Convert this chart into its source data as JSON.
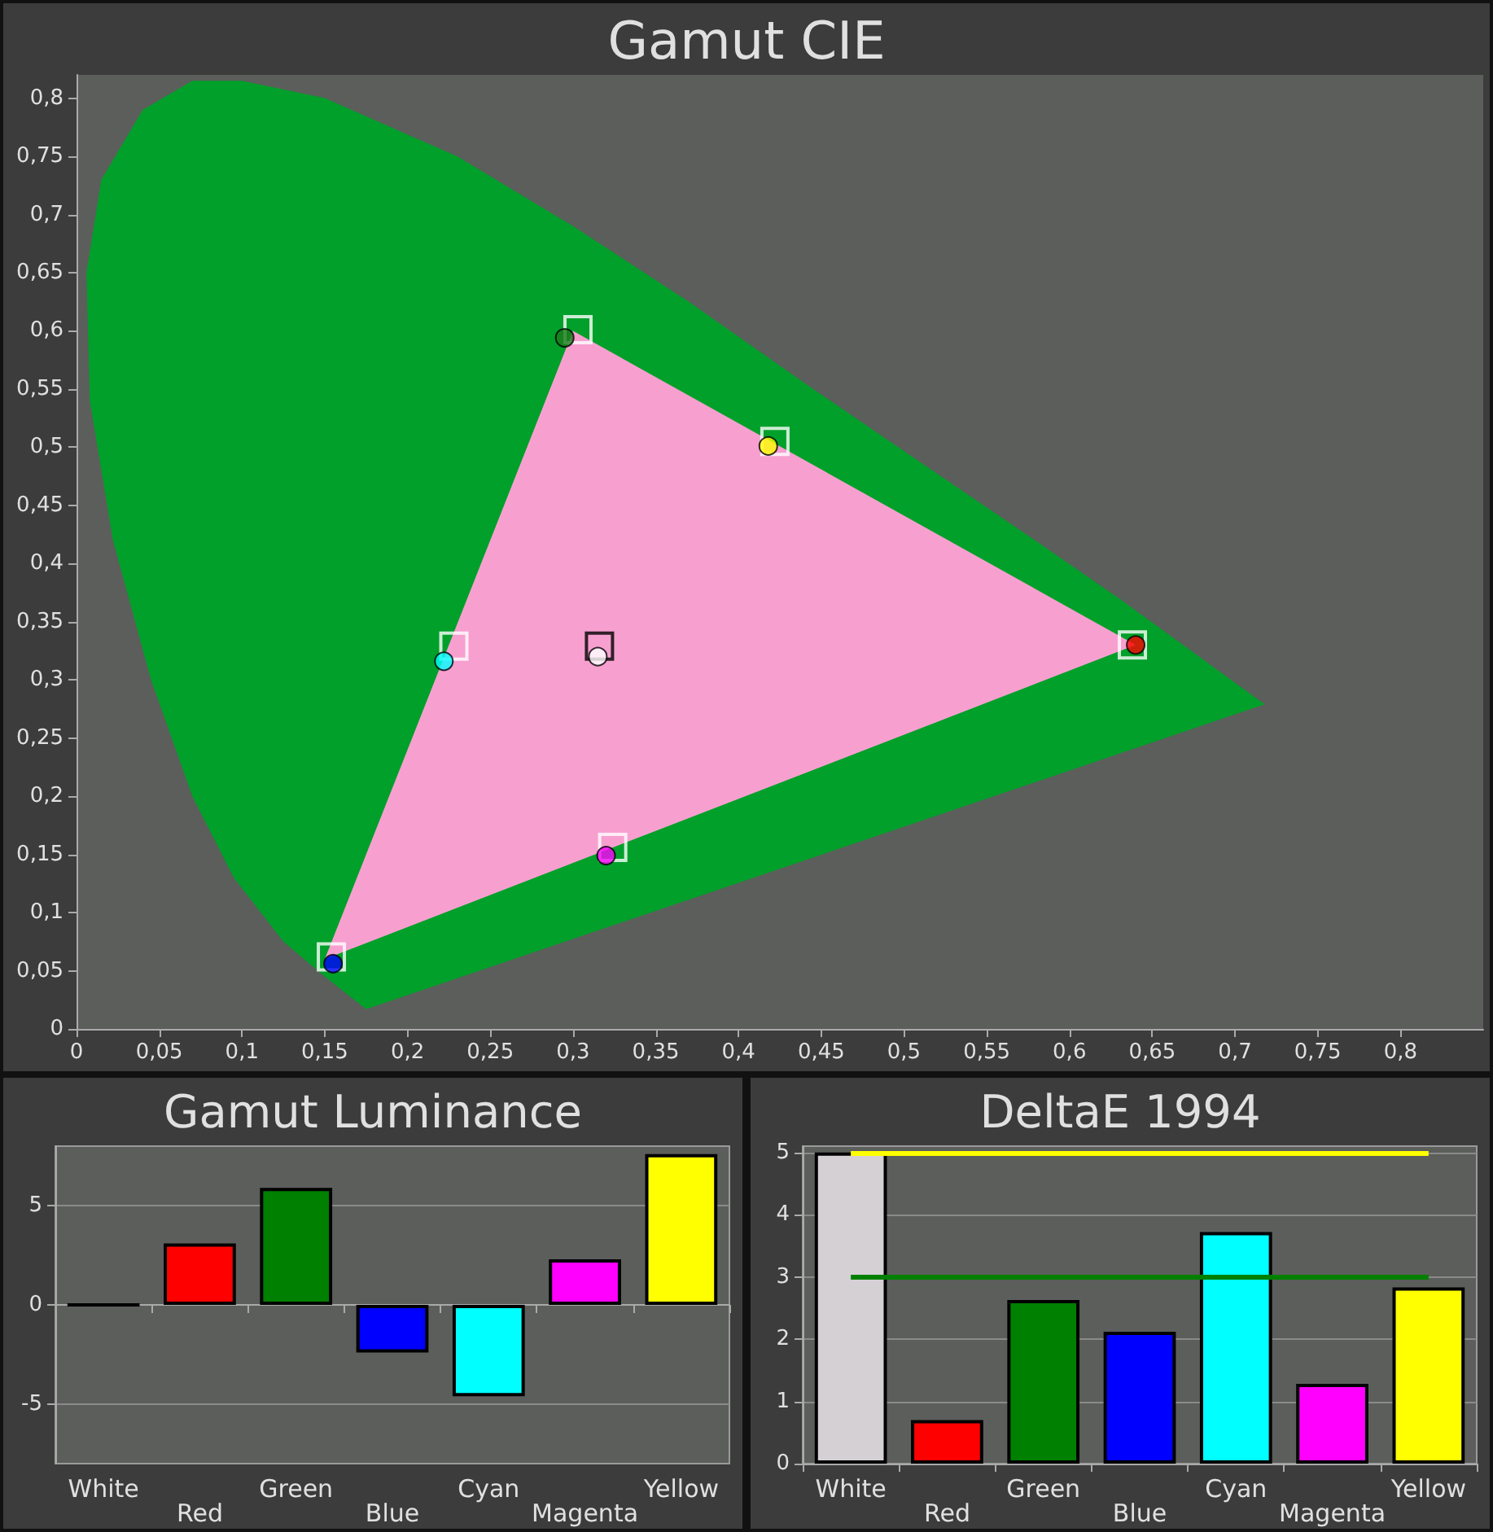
{
  "chart_data": [
    {
      "type": "scatter",
      "title": "Gamut CIE",
      "xlim": [
        0,
        0.85
      ],
      "ylim": [
        0,
        0.82
      ],
      "grid": false,
      "xticks": [
        0,
        {
          "value": 0.05,
          "label": "0,05"
        },
        {
          "value": 0.1,
          "label": "0,1"
        },
        {
          "value": 0.15,
          "label": "0,15"
        },
        {
          "value": 0.2,
          "label": "0,2"
        },
        {
          "value": 0.25,
          "label": "0,25"
        },
        {
          "value": 0.3,
          "label": "0,3"
        },
        {
          "value": 0.35,
          "label": "0,35"
        },
        {
          "value": 0.4,
          "label": "0,4"
        },
        {
          "value": 0.45,
          "label": "0,45"
        },
        {
          "value": 0.5,
          "label": "0,5"
        },
        {
          "value": 0.55,
          "label": "0,55"
        },
        {
          "value": 0.6,
          "label": "0,6"
        },
        {
          "value": 0.65,
          "label": "0,65"
        },
        {
          "value": 0.7,
          "label": "0,7"
        },
        {
          "value": 0.75,
          "label": "0,75"
        },
        {
          "value": 0.8,
          "label": "0,8"
        }
      ],
      "yticks": [
        0,
        {
          "value": 0.05,
          "label": "0,05"
        },
        {
          "value": 0.1,
          "label": "0,1"
        },
        {
          "value": 0.15,
          "label": "0,15"
        },
        {
          "value": 0.2,
          "label": "0,2"
        },
        {
          "value": 0.25,
          "label": "0,25"
        },
        {
          "value": 0.3,
          "label": "0,3"
        },
        {
          "value": 0.35,
          "label": "0,35"
        },
        {
          "value": 0.4,
          "label": "0,4"
        },
        {
          "value": 0.45,
          "label": "0,45"
        },
        {
          "value": 0.5,
          "label": "0,5"
        },
        {
          "value": 0.55,
          "label": "0,55"
        },
        {
          "value": 0.6,
          "label": "0,6"
        },
        {
          "value": 0.65,
          "label": "0,65"
        },
        {
          "value": 0.7,
          "label": "0,7"
        },
        {
          "value": 0.75,
          "label": "0,75"
        },
        {
          "value": 0.8,
          "label": "0,8"
        }
      ],
      "series": [
        {
          "type": "area",
          "color": "#00a02a",
          "x": [
            0.175,
            0.15,
            0.125,
            0.095,
            0.07,
            0.045,
            0.022,
            0.008,
            0.006,
            0.015,
            0.04,
            0.07,
            0.1,
            0.15,
            0.23,
            0.3,
            0.37,
            0.44,
            0.51,
            0.575,
            0.63,
            0.718
          ],
          "values": [
            0.017,
            0.045,
            0.075,
            0.13,
            0.2,
            0.3,
            0.42,
            0.54,
            0.65,
            0.73,
            0.79,
            0.815,
            0.815,
            0.8,
            0.75,
            0.69,
            0.625,
            0.555,
            0.487,
            0.424,
            0.37,
            0.279
          ]
        },
        {
          "type": "area",
          "color": "#f7a0d0",
          "x": [
            0.64,
            0.3,
            0.15
          ],
          "values": [
            0.33,
            0.6,
            0.06
          ]
        },
        {
          "type": "scatter",
          "marker": "square",
          "x": [
            0.316,
            0.638,
            0.303,
            0.154,
            0.228,
            0.324,
            0.422
          ],
          "values": [
            0.329,
            0.33,
            0.601,
            0.062,
            0.329,
            0.156,
            0.505
          ],
          "colors": [
            "#000000",
            "#ffffff",
            "#ffffff",
            "#ffffff",
            "#ffffff",
            "#ffffff",
            "#ffffff"
          ]
        },
        {
          "type": "scatter",
          "marker": "circle",
          "x": [
            0.315,
            0.64,
            0.295,
            0.155,
            0.222,
            0.32,
            0.418
          ],
          "values": [
            0.32,
            0.33,
            0.594,
            0.056,
            0.316,
            0.149,
            0.501
          ],
          "colors": [
            "#ffffff",
            "#ff0000",
            "#1a7a1a",
            "#0000ff",
            "#00ffff",
            "#ff00ff",
            "#ffff00"
          ]
        }
      ]
    },
    {
      "type": "bar",
      "title": "Gamut Luminance",
      "categories": [
        "White",
        "Red",
        "Green",
        "Blue",
        "Cyan",
        "Magenta",
        "Yellow"
      ],
      "values": [
        0,
        3.1,
        5.9,
        -2.4,
        -4.6,
        2.3,
        7.6
      ],
      "colors": [
        "#000000",
        "#ff0000",
        "#008000",
        "#0000ff",
        "#00ffff",
        "#ff00ff",
        "#ffff00"
      ],
      "ylim": [
        -8,
        8
      ],
      "yticks": [
        -5,
        0,
        5
      ],
      "grid": "y"
    },
    {
      "type": "bar",
      "title": "DeltaE 1994",
      "categories": [
        "White",
        "Red",
        "Green",
        "Blue",
        "Cyan",
        "Magenta",
        "Yellow"
      ],
      "values": [
        5.0,
        0.7,
        2.63,
        2.12,
        3.72,
        1.28,
        2.83
      ],
      "colors": [
        "#d4d0d4",
        "#ff0000",
        "#008000",
        "#0000ff",
        "#00ffff",
        "#ff00ff",
        "#ffff00"
      ],
      "ylim": [
        0,
        5.1
      ],
      "yticks": [
        0,
        1,
        2,
        3,
        4,
        5
      ],
      "grid": "y",
      "ref_lines": [
        {
          "axis": "y",
          "value": 5,
          "color": "#ffff00"
        },
        {
          "axis": "y",
          "value": 3,
          "color": "#008000"
        }
      ]
    }
  ]
}
